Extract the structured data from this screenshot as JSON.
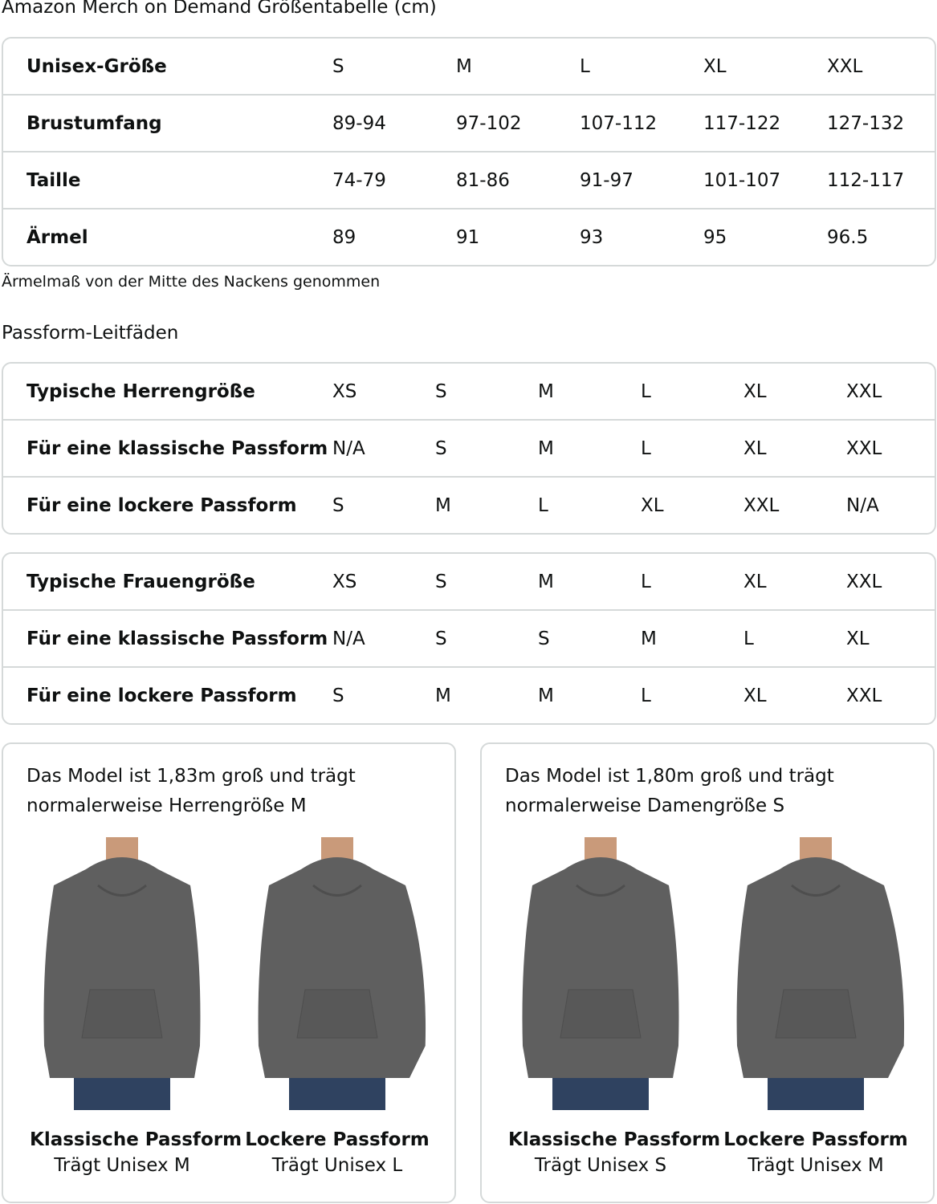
{
  "title": "Amazon Merch on Demand Größentabelle (cm)",
  "unisex_table": {
    "rows": [
      {
        "label": "Unisex-Größe",
        "values": [
          "S",
          "M",
          "L",
          "XL",
          "XXL"
        ]
      },
      {
        "label": "Brustumfang",
        "values": [
          "89-94",
          "97-102",
          "107-112",
          "117-122",
          "127-132"
        ]
      },
      {
        "label": "Taille",
        "values": [
          "74-79",
          "81-86",
          "91-97",
          "101-107",
          "112-117"
        ]
      },
      {
        "label": "Ärmel",
        "values": [
          "89",
          "91",
          "93",
          "95",
          "96.5"
        ]
      }
    ]
  },
  "note": "Ärmelmaß von der Mitte des Nackens genommen",
  "fit_heading": "Passform-Leitfäden",
  "men_table": {
    "rows": [
      {
        "label": "Typische Herrengröße",
        "values": [
          "XS",
          "S",
          "M",
          "L",
          "XL",
          "XXL"
        ]
      },
      {
        "label": "Für eine klassische Passform",
        "values": [
          "N/A",
          "S",
          "M",
          "L",
          "XL",
          "XXL"
        ]
      },
      {
        "label": "Für eine lockere Passform",
        "values": [
          "S",
          "M",
          "L",
          "XL",
          "XXL",
          "N/A"
        ]
      }
    ]
  },
  "women_table": {
    "rows": [
      {
        "label": "Typische Frauengröße",
        "values": [
          "XS",
          "S",
          "M",
          "L",
          "XL",
          "XXL"
        ]
      },
      {
        "label": "Für eine klassische Passform",
        "values": [
          "N/A",
          "S",
          "S",
          "M",
          "L",
          "XL"
        ]
      },
      {
        "label": "Für eine lockere Passform",
        "values": [
          "S",
          "M",
          "M",
          "L",
          "XL",
          "XXL"
        ]
      }
    ]
  },
  "cards": [
    {
      "line1": "Das Model ist 1,83m groß und trägt",
      "line2": "normalerweise Herrengröße M",
      "figures": [
        {
          "title": "Klassische Passform",
          "sub": "Trägt Unisex M"
        },
        {
          "title": "Lockere Passform",
          "sub": "Trägt Unisex L"
        }
      ]
    },
    {
      "line1": "Das Model ist 1,80m groß und trägt",
      "line2": "normalerweise Damengröße S",
      "figures": [
        {
          "title": "Klassische Passform",
          "sub": "Trägt Unisex S"
        },
        {
          "title": "Lockere Passform",
          "sub": "Trägt Unisex M"
        }
      ]
    }
  ],
  "colors": {
    "hoodie": "#5f5f5f",
    "jeans": "#2f4260",
    "skin": "#c99a7a",
    "border": "#d5d9d9"
  }
}
